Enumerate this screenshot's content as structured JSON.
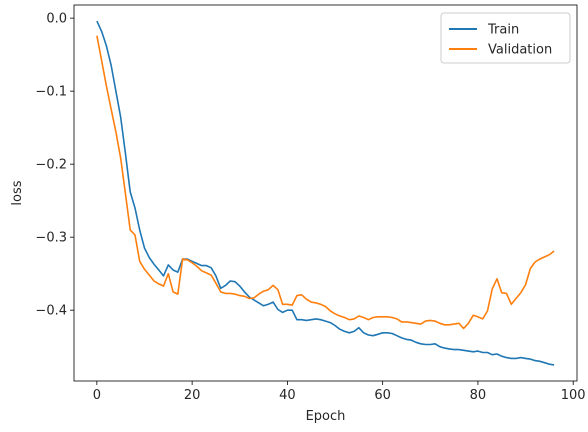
{
  "chart_data": {
    "type": "line",
    "title": "",
    "xlabel": "Epoch",
    "ylabel": "loss",
    "xlim": [
      -4.8,
      100.8
    ],
    "ylim": [
      -0.497,
      0.018
    ],
    "xticks": [
      0,
      20,
      40,
      60,
      80,
      100
    ],
    "xtick_labels": [
      "0",
      "20",
      "40",
      "60",
      "80",
      "100"
    ],
    "yticks": [
      0.0,
      -0.1,
      -0.2,
      -0.3,
      -0.4
    ],
    "ytick_labels": [
      "0.0",
      "−0.1",
      "−0.2",
      "−0.3",
      "−0.4"
    ],
    "grid": false,
    "legend_position": "top-right",
    "series": [
      {
        "name": "Train",
        "color": "#1f77b4",
        "points": [
          [
            0,
            -0.004
          ],
          [
            1,
            -0.018
          ],
          [
            2,
            -0.038
          ],
          [
            3,
            -0.065
          ],
          [
            4,
            -0.1
          ],
          [
            5,
            -0.136
          ],
          [
            6,
            -0.185
          ],
          [
            7,
            -0.238
          ],
          [
            8,
            -0.26
          ],
          [
            9,
            -0.29
          ],
          [
            10,
            -0.315
          ],
          [
            11,
            -0.328
          ],
          [
            12,
            -0.337
          ],
          [
            13,
            -0.345
          ],
          [
            14,
            -0.353
          ],
          [
            15,
            -0.338
          ],
          [
            16,
            -0.345
          ],
          [
            17,
            -0.348
          ],
          [
            18,
            -0.33
          ],
          [
            19,
            -0.33
          ],
          [
            20,
            -0.333
          ],
          [
            21,
            -0.336
          ],
          [
            22,
            -0.339
          ],
          [
            23,
            -0.339
          ],
          [
            24,
            -0.342
          ],
          [
            25,
            -0.353
          ],
          [
            26,
            -0.37
          ],
          [
            27,
            -0.366
          ],
          [
            28,
            -0.36
          ],
          [
            29,
            -0.361
          ],
          [
            30,
            -0.367
          ],
          [
            31,
            -0.375
          ],
          [
            32,
            -0.382
          ],
          [
            33,
            -0.386
          ],
          [
            34,
            -0.39
          ],
          [
            35,
            -0.394
          ],
          [
            36,
            -0.392
          ],
          [
            37,
            -0.389
          ],
          [
            38,
            -0.399
          ],
          [
            39,
            -0.403
          ],
          [
            40,
            -0.4
          ],
          [
            41,
            -0.4
          ],
          [
            42,
            -0.413
          ],
          [
            43,
            -0.413
          ],
          [
            44,
            -0.414
          ],
          [
            45,
            -0.413
          ],
          [
            46,
            -0.412
          ],
          [
            47,
            -0.413
          ],
          [
            48,
            -0.415
          ],
          [
            49,
            -0.417
          ],
          [
            50,
            -0.421
          ],
          [
            51,
            -0.426
          ],
          [
            52,
            -0.429
          ],
          [
            53,
            -0.431
          ],
          [
            54,
            -0.429
          ],
          [
            55,
            -0.424
          ],
          [
            56,
            -0.431
          ],
          [
            57,
            -0.434
          ],
          [
            58,
            -0.435
          ],
          [
            59,
            -0.433
          ],
          [
            60,
            -0.431
          ],
          [
            61,
            -0.431
          ],
          [
            62,
            -0.432
          ],
          [
            63,
            -0.435
          ],
          [
            64,
            -0.438
          ],
          [
            65,
            -0.44
          ],
          [
            66,
            -0.441
          ],
          [
            67,
            -0.444
          ],
          [
            68,
            -0.446
          ],
          [
            69,
            -0.447
          ],
          [
            70,
            -0.447
          ],
          [
            71,
            -0.446
          ],
          [
            72,
            -0.45
          ],
          [
            73,
            -0.452
          ],
          [
            74,
            -0.453
          ],
          [
            75,
            -0.454
          ],
          [
            76,
            -0.454
          ],
          [
            77,
            -0.455
          ],
          [
            78,
            -0.456
          ],
          [
            79,
            -0.457
          ],
          [
            80,
            -0.456
          ],
          [
            81,
            -0.458
          ],
          [
            82,
            -0.458
          ],
          [
            83,
            -0.461
          ],
          [
            84,
            -0.46
          ],
          [
            85,
            -0.463
          ],
          [
            86,
            -0.465
          ],
          [
            87,
            -0.466
          ],
          [
            88,
            -0.466
          ],
          [
            89,
            -0.465
          ],
          [
            90,
            -0.466
          ],
          [
            91,
            -0.467
          ],
          [
            92,
            -0.469
          ],
          [
            93,
            -0.47
          ],
          [
            94,
            -0.472
          ],
          [
            95,
            -0.474
          ],
          [
            96,
            -0.475
          ]
        ]
      },
      {
        "name": "Validation",
        "color": "#ff7f0e",
        "points": [
          [
            0,
            -0.024
          ],
          [
            1,
            -0.058
          ],
          [
            2,
            -0.093
          ],
          [
            3,
            -0.125
          ],
          [
            4,
            -0.156
          ],
          [
            5,
            -0.192
          ],
          [
            6,
            -0.24
          ],
          [
            7,
            -0.29
          ],
          [
            8,
            -0.297
          ],
          [
            9,
            -0.333
          ],
          [
            10,
            -0.344
          ],
          [
            11,
            -0.352
          ],
          [
            12,
            -0.36
          ],
          [
            13,
            -0.364
          ],
          [
            14,
            -0.367
          ],
          [
            15,
            -0.35
          ],
          [
            16,
            -0.375
          ],
          [
            17,
            -0.378
          ],
          [
            18,
            -0.33
          ],
          [
            19,
            -0.331
          ],
          [
            20,
            -0.335
          ],
          [
            21,
            -0.34
          ],
          [
            22,
            -0.346
          ],
          [
            23,
            -0.349
          ],
          [
            24,
            -0.352
          ],
          [
            25,
            -0.363
          ],
          [
            26,
            -0.375
          ],
          [
            27,
            -0.377
          ],
          [
            28,
            -0.377
          ],
          [
            29,
            -0.378
          ],
          [
            30,
            -0.38
          ],
          [
            31,
            -0.381
          ],
          [
            32,
            -0.384
          ],
          [
            33,
            -0.383
          ],
          [
            34,
            -0.378
          ],
          [
            35,
            -0.374
          ],
          [
            36,
            -0.372
          ],
          [
            37,
            -0.366
          ],
          [
            38,
            -0.372
          ],
          [
            39,
            -0.392
          ],
          [
            40,
            -0.392
          ],
          [
            41,
            -0.393
          ],
          [
            42,
            -0.38
          ],
          [
            43,
            -0.379
          ],
          [
            44,
            -0.385
          ],
          [
            45,
            -0.389
          ],
          [
            46,
            -0.39
          ],
          [
            47,
            -0.392
          ],
          [
            48,
            -0.395
          ],
          [
            49,
            -0.401
          ],
          [
            50,
            -0.405
          ],
          [
            51,
            -0.408
          ],
          [
            52,
            -0.41
          ],
          [
            53,
            -0.413
          ],
          [
            54,
            -0.412
          ],
          [
            55,
            -0.408
          ],
          [
            56,
            -0.41
          ],
          [
            57,
            -0.413
          ],
          [
            58,
            -0.41
          ],
          [
            59,
            -0.409
          ],
          [
            60,
            -0.409
          ],
          [
            61,
            -0.409
          ],
          [
            62,
            -0.41
          ],
          [
            63,
            -0.412
          ],
          [
            64,
            -0.416
          ],
          [
            65,
            -0.416
          ],
          [
            66,
            -0.417
          ],
          [
            67,
            -0.418
          ],
          [
            68,
            -0.419
          ],
          [
            69,
            -0.415
          ],
          [
            70,
            -0.414
          ],
          [
            71,
            -0.415
          ],
          [
            72,
            -0.418
          ],
          [
            73,
            -0.42
          ],
          [
            74,
            -0.42
          ],
          [
            75,
            -0.419
          ],
          [
            76,
            -0.418
          ],
          [
            77,
            -0.425
          ],
          [
            78,
            -0.418
          ],
          [
            79,
            -0.407
          ],
          [
            80,
            -0.409
          ],
          [
            81,
            -0.412
          ],
          [
            82,
            -0.401
          ],
          [
            83,
            -0.371
          ],
          [
            84,
            -0.357
          ],
          [
            85,
            -0.376
          ],
          [
            86,
            -0.377
          ],
          [
            87,
            -0.392
          ],
          [
            88,
            -0.384
          ],
          [
            89,
            -0.376
          ],
          [
            90,
            -0.365
          ],
          [
            91,
            -0.343
          ],
          [
            92,
            -0.334
          ],
          [
            93,
            -0.33
          ],
          [
            94,
            -0.327
          ],
          [
            95,
            -0.324
          ],
          [
            96,
            -0.319
          ]
        ]
      }
    ]
  }
}
